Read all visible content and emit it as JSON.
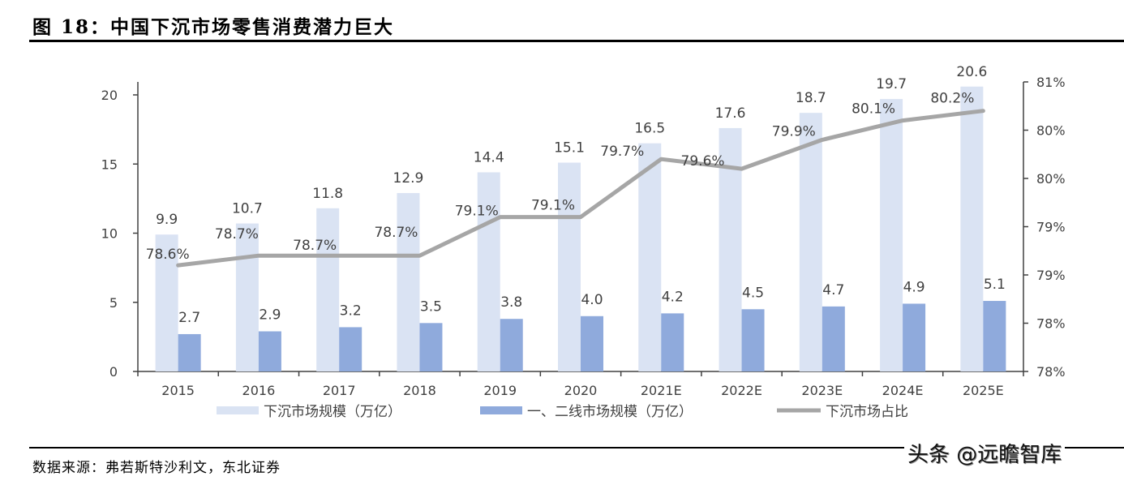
{
  "title": "图 18：中国下沉市场零售消费潜力巨大",
  "source": "数据来源：弗若斯特沙利文，东北证券",
  "watermark": "头条 @远瞻智库",
  "chart_data": {
    "type": "bar",
    "categories": [
      "2015",
      "2016",
      "2017",
      "2018",
      "2019",
      "2020",
      "2021E",
      "2022E",
      "2023E",
      "2024E",
      "2025E"
    ],
    "series": [
      {
        "name": "下沉市场规模（万亿）",
        "type": "bar",
        "axis": "left",
        "color": "#dae3f3",
        "values": [
          9.9,
          10.7,
          11.8,
          12.9,
          14.4,
          15.1,
          16.5,
          17.6,
          18.7,
          19.7,
          20.6
        ],
        "labels": [
          "9.9",
          "10.7",
          "11.8",
          "12.9",
          "14.4",
          "15.1",
          "16.5",
          "17.6",
          "18.7",
          "19.7",
          "20.6"
        ]
      },
      {
        "name": "一、二线市场规模（万亿）",
        "type": "bar",
        "axis": "left",
        "color": "#8faadc",
        "values": [
          2.7,
          2.9,
          3.2,
          3.5,
          3.8,
          4.0,
          4.2,
          4.5,
          4.7,
          4.9,
          5.1
        ],
        "labels": [
          "2.7",
          "2.9",
          "3.2",
          "3.5",
          "3.8",
          "4.0",
          "4.2",
          "4.5",
          "4.7",
          "4.9",
          "5.1"
        ]
      },
      {
        "name": "下沉市场占比",
        "type": "line",
        "axis": "right",
        "color": "#a6a6a6",
        "values": [
          78.6,
          78.7,
          78.7,
          78.7,
          79.1,
          79.1,
          79.7,
          79.6,
          79.9,
          80.1,
          80.2
        ],
        "labels": [
          "78.6%",
          "78.7%",
          "78.7%",
          "78.7%",
          "79.1%",
          "79.1%",
          "79.7%",
          "79.6%",
          "79.9%",
          "80.1%",
          "80.2%"
        ]
      }
    ],
    "left_axis": {
      "ylim": [
        0,
        20
      ],
      "ticks": [
        "0",
        "5",
        "10",
        "15",
        "20"
      ]
    },
    "right_axis": {
      "ylim": [
        77.5,
        80.5
      ],
      "ticks": [
        "78%",
        "78%",
        "79%",
        "79%",
        "80%",
        "80%",
        "81%"
      ]
    },
    "legend_position": "bottom",
    "grid": false
  }
}
